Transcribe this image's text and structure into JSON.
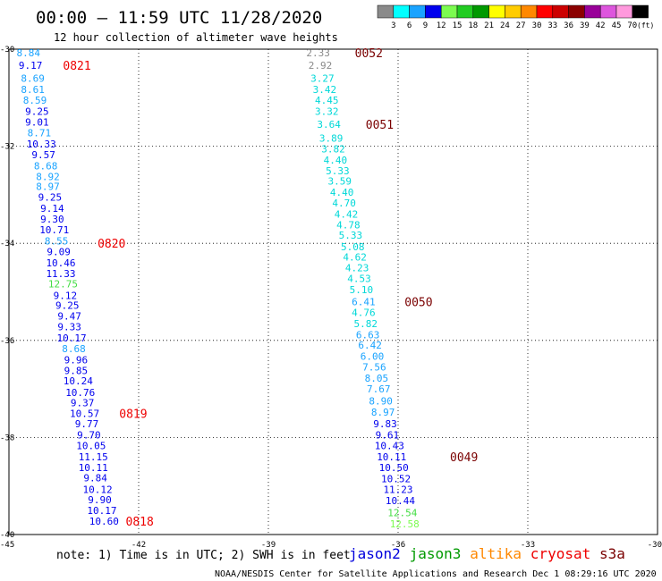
{
  "title": "00:00 – 11:59 UTC 11/28/2020",
  "subtitle": "12 hour collection of altimeter wave heights",
  "units_label": "(ft)",
  "color_scale": [
    {
      "label": "3",
      "color": "#8a8a8a"
    },
    {
      "label": "6",
      "color": "#00ffff"
    },
    {
      "label": "9",
      "color": "#1aa3ff"
    },
    {
      "label": "12",
      "color": "#0000ee"
    },
    {
      "label": "15",
      "color": "#7cfc50"
    },
    {
      "label": "18",
      "color": "#22cc22"
    },
    {
      "label": "21",
      "color": "#009900"
    },
    {
      "label": "24",
      "color": "#ffff00"
    },
    {
      "label": "27",
      "color": "#ffcc00"
    },
    {
      "label": "30",
      "color": "#ff8800"
    },
    {
      "label": "33",
      "color": "#ff0000"
    },
    {
      "label": "36",
      "color": "#cc0000"
    },
    {
      "label": "39",
      "color": "#8b0000"
    },
    {
      "label": "42",
      "color": "#990099"
    },
    {
      "label": "45",
      "color": "#dd55dd"
    },
    {
      "label": "70",
      "color": "#ff99dd"
    },
    {
      "label": "",
      "color": "#000000"
    }
  ],
  "chart_data": {
    "type": "scatter",
    "xlim": [
      -45,
      -30
    ],
    "ylim": [
      -40,
      -30
    ],
    "xticks": [
      {
        "value": -45,
        "label": "-45"
      },
      {
        "value": -42,
        "label": "-42"
      },
      {
        "value": -39,
        "label": "-39"
      },
      {
        "value": -36,
        "label": "-36"
      },
      {
        "value": -33,
        "label": "-33"
      },
      {
        "value": -30,
        "label": "-30"
      }
    ],
    "yticks": [
      {
        "value": -30,
        "label": "-30"
      },
      {
        "value": -32,
        "label": "-32"
      },
      {
        "value": -34,
        "label": "-34"
      },
      {
        "value": -36,
        "label": "-36"
      },
      {
        "value": -38,
        "label": "-38"
      },
      {
        "value": -40,
        "label": "-40"
      }
    ],
    "grid": true,
    "tracks": [
      {
        "points": [
          {
            "lon": -44.55,
            "lat": -30.07,
            "swh": "8.84",
            "color": "#1aa3ff"
          },
          {
            "lon": -44.5,
            "lat": -30.33,
            "swh": "9.17",
            "color": "#0000ee"
          },
          {
            "lon": -44.45,
            "lat": -30.6,
            "swh": "8.69",
            "color": "#1aa3ff"
          },
          {
            "lon": -44.45,
            "lat": -30.83,
            "swh": "8.61",
            "color": "#1aa3ff"
          },
          {
            "lon": -44.4,
            "lat": -31.05,
            "swh": "8.59",
            "color": "#1aa3ff"
          },
          {
            "lon": -44.35,
            "lat": -31.28,
            "swh": "9.25",
            "color": "#0000ee"
          },
          {
            "lon": -44.35,
            "lat": -31.5,
            "swh": "9.01",
            "color": "#0000ee"
          },
          {
            "lon": -44.3,
            "lat": -31.72,
            "swh": "8.71",
            "color": "#1aa3ff"
          },
          {
            "lon": -44.25,
            "lat": -31.95,
            "swh": "10.33",
            "color": "#0000ee"
          },
          {
            "lon": -44.2,
            "lat": -32.17,
            "swh": "9.57",
            "color": "#0000ee"
          },
          {
            "lon": -44.15,
            "lat": -32.4,
            "swh": "8.68",
            "color": "#1aa3ff"
          },
          {
            "lon": -44.1,
            "lat": -32.62,
            "swh": "8.92",
            "color": "#1aa3ff"
          },
          {
            "lon": -44.1,
            "lat": -32.83,
            "swh": "8.97",
            "color": "#1aa3ff"
          },
          {
            "lon": -44.05,
            "lat": -33.05,
            "swh": "9.25",
            "color": "#0000ee"
          },
          {
            "lon": -44.0,
            "lat": -33.28,
            "swh": "9.14",
            "color": "#0000ee"
          },
          {
            "lon": -44.0,
            "lat": -33.5,
            "swh": "9.30",
            "color": "#0000ee"
          },
          {
            "lon": -43.95,
            "lat": -33.72,
            "swh": "10.71",
            "color": "#0000ee"
          },
          {
            "lon": -43.9,
            "lat": -33.95,
            "swh": "8.55",
            "color": "#1aa3ff"
          },
          {
            "lon": -43.85,
            "lat": -34.17,
            "swh": "9.09",
            "color": "#0000ee"
          },
          {
            "lon": -43.8,
            "lat": -34.4,
            "swh": "10.46",
            "color": "#0000ee"
          },
          {
            "lon": -43.8,
            "lat": -34.62,
            "swh": "11.33",
            "color": "#0000ee"
          },
          {
            "lon": -43.75,
            "lat": -34.83,
            "swh": "12.75",
            "color": "#44dd44"
          },
          {
            "lon": -43.7,
            "lat": -35.07,
            "swh": "9.12",
            "color": "#0000ee"
          },
          {
            "lon": -43.65,
            "lat": -35.28,
            "swh": "9.25",
            "color": "#0000ee"
          },
          {
            "lon": -43.6,
            "lat": -35.5,
            "swh": "9.47",
            "color": "#0000ee"
          },
          {
            "lon": -43.6,
            "lat": -35.72,
            "swh": "9.33",
            "color": "#0000ee"
          },
          {
            "lon": -43.55,
            "lat": -35.95,
            "swh": "10.17",
            "color": "#0000ee"
          },
          {
            "lon": -43.5,
            "lat": -36.17,
            "swh": "8.68",
            "color": "#1aa3ff"
          },
          {
            "lon": -43.45,
            "lat": -36.4,
            "swh": "9.96",
            "color": "#0000ee"
          },
          {
            "lon": -43.45,
            "lat": -36.62,
            "swh": "9.85",
            "color": "#0000ee"
          },
          {
            "lon": -43.4,
            "lat": -36.83,
            "swh": "10.24",
            "color": "#0000ee"
          },
          {
            "lon": -43.35,
            "lat": -37.07,
            "swh": "10.76",
            "color": "#0000ee"
          },
          {
            "lon": -43.3,
            "lat": -37.28,
            "swh": "9.37",
            "color": "#0000ee"
          },
          {
            "lon": -43.25,
            "lat": -37.5,
            "swh": "10.57",
            "color": "#0000ee"
          },
          {
            "lon": -43.2,
            "lat": -37.72,
            "swh": "9.77",
            "color": "#0000ee"
          },
          {
            "lon": -43.15,
            "lat": -37.95,
            "swh": "9.70",
            "color": "#0000ee"
          },
          {
            "lon": -43.1,
            "lat": -38.17,
            "swh": "10.05",
            "color": "#0000ee"
          },
          {
            "lon": -43.05,
            "lat": -38.4,
            "swh": "11.15",
            "color": "#0000ee"
          },
          {
            "lon": -43.05,
            "lat": -38.62,
            "swh": "10.11",
            "color": "#0000ee"
          },
          {
            "lon": -43.0,
            "lat": -38.83,
            "swh": "9.84",
            "color": "#0000ee"
          },
          {
            "lon": -42.95,
            "lat": -39.07,
            "swh": "10.12",
            "color": "#0000ee"
          },
          {
            "lon": -42.9,
            "lat": -39.28,
            "swh": "9.90",
            "color": "#0000ee"
          },
          {
            "lon": -42.85,
            "lat": -39.5,
            "swh": "10.17",
            "color": "#0000ee"
          },
          {
            "lon": -42.8,
            "lat": -39.72,
            "swh": "10.60",
            "color": "#0000ee"
          }
        ],
        "time_labels": [
          {
            "text": "0821",
            "lon": -43.75,
            "lat": -30.33,
            "color": "#ee0000"
          },
          {
            "text": "0820",
            "lon": -42.95,
            "lat": -34.0,
            "color": "#ee0000"
          },
          {
            "text": "0819",
            "lon": -42.45,
            "lat": -37.5,
            "color": "#ee0000"
          },
          {
            "text": "0818",
            "lon": -42.3,
            "lat": -39.72,
            "color": "#ee0000"
          }
        ]
      },
      {
        "points": [
          {
            "lon": -37.85,
            "lat": -30.07,
            "swh": "2.33",
            "color": "#8a8a8a"
          },
          {
            "lon": -37.8,
            "lat": -30.33,
            "swh": "2.92",
            "color": "#8a8a8a"
          },
          {
            "lon": -37.75,
            "lat": -30.6,
            "swh": "3.27",
            "color": "#00d8d8"
          },
          {
            "lon": -37.7,
            "lat": -30.83,
            "swh": "3.42",
            "color": "#00d8d8"
          },
          {
            "lon": -37.65,
            "lat": -31.05,
            "swh": "4.45",
            "color": "#00d8d8"
          },
          {
            "lon": -37.65,
            "lat": -31.28,
            "swh": "3.32",
            "color": "#00d8d8"
          },
          {
            "lon": -37.6,
            "lat": -31.55,
            "swh": "3.64",
            "color": "#00d8d8"
          },
          {
            "lon": -37.55,
            "lat": -31.83,
            "swh": "3.89",
            "color": "#00d8d8"
          },
          {
            "lon": -37.5,
            "lat": -32.05,
            "swh": "3.82",
            "color": "#00d8d8"
          },
          {
            "lon": -37.45,
            "lat": -32.28,
            "swh": "4.40",
            "color": "#00d8d8"
          },
          {
            "lon": -37.4,
            "lat": -32.5,
            "swh": "5.33",
            "color": "#00d8d8"
          },
          {
            "lon": -37.35,
            "lat": -32.72,
            "swh": "3.59",
            "color": "#00d8d8"
          },
          {
            "lon": -37.3,
            "lat": -32.95,
            "swh": "4.40",
            "color": "#00d8d8"
          },
          {
            "lon": -37.25,
            "lat": -33.17,
            "swh": "4.70",
            "color": "#00d8d8"
          },
          {
            "lon": -37.2,
            "lat": -33.4,
            "swh": "4.42",
            "color": "#00d8d8"
          },
          {
            "lon": -37.15,
            "lat": -33.62,
            "swh": "4.78",
            "color": "#00d8d8"
          },
          {
            "lon": -37.1,
            "lat": -33.83,
            "swh": "5.33",
            "color": "#00d8d8"
          },
          {
            "lon": -37.05,
            "lat": -34.07,
            "swh": "5.08",
            "color": "#00d8d8"
          },
          {
            "lon": -37.0,
            "lat": -34.28,
            "swh": "4.62",
            "color": "#00d8d8"
          },
          {
            "lon": -36.95,
            "lat": -34.5,
            "swh": "4.23",
            "color": "#00d8d8"
          },
          {
            "lon": -36.9,
            "lat": -34.72,
            "swh": "4.53",
            "color": "#00d8d8"
          },
          {
            "lon": -36.85,
            "lat": -34.95,
            "swh": "5.10",
            "color": "#00d8d8"
          },
          {
            "lon": -36.8,
            "lat": -35.2,
            "swh": "6.41",
            "color": "#1aa3ff"
          },
          {
            "lon": -36.8,
            "lat": -35.42,
            "swh": "4.76",
            "color": "#00d8d8"
          },
          {
            "lon": -36.75,
            "lat": -35.65,
            "swh": "5.82",
            "color": "#00d8d8"
          },
          {
            "lon": -36.7,
            "lat": -35.88,
            "swh": "6.63",
            "color": "#1aa3ff"
          },
          {
            "lon": -36.65,
            "lat": -36.1,
            "swh": "6.42",
            "color": "#1aa3ff"
          },
          {
            "lon": -36.6,
            "lat": -36.33,
            "swh": "6.00",
            "color": "#1aa3ff"
          },
          {
            "lon": -36.55,
            "lat": -36.55,
            "swh": "7.56",
            "color": "#1aa3ff"
          },
          {
            "lon": -36.5,
            "lat": -36.78,
            "swh": "8.05",
            "color": "#1aa3ff"
          },
          {
            "lon": -36.45,
            "lat": -37.0,
            "swh": "7.67",
            "color": "#1aa3ff"
          },
          {
            "lon": -36.4,
            "lat": -37.25,
            "swh": "8.90",
            "color": "#1aa3ff"
          },
          {
            "lon": -36.35,
            "lat": -37.48,
            "swh": "8.97",
            "color": "#1aa3ff"
          },
          {
            "lon": -36.3,
            "lat": -37.72,
            "swh": "9.83",
            "color": "#0000ee"
          },
          {
            "lon": -36.25,
            "lat": -37.95,
            "swh": "9.61",
            "color": "#0000ee"
          },
          {
            "lon": -36.2,
            "lat": -38.17,
            "swh": "10.43",
            "color": "#0000ee"
          },
          {
            "lon": -36.15,
            "lat": -38.4,
            "swh": "10.11",
            "color": "#0000ee"
          },
          {
            "lon": -36.1,
            "lat": -38.62,
            "swh": "10.50",
            "color": "#0000ee"
          },
          {
            "lon": -36.05,
            "lat": -38.85,
            "swh": "10.52",
            "color": "#0000ee"
          },
          {
            "lon": -36.0,
            "lat": -39.07,
            "swh": "11.23",
            "color": "#0000ee"
          },
          {
            "lon": -35.95,
            "lat": -39.3,
            "swh": "10.44",
            "color": "#0000ee"
          },
          {
            "lon": -35.9,
            "lat": -39.55,
            "swh": "12.54",
            "color": "#44dd44"
          },
          {
            "lon": -35.85,
            "lat": -39.78,
            "swh": "12.58",
            "color": "#7cfc50"
          }
        ],
        "time_labels": [
          {
            "text": "0052",
            "lon": -37.0,
            "lat": -30.07,
            "color": "#7a0000"
          },
          {
            "text": "0051",
            "lon": -36.75,
            "lat": -31.55,
            "color": "#7a0000"
          },
          {
            "text": "0050",
            "lon": -35.85,
            "lat": -35.2,
            "color": "#7a0000"
          },
          {
            "text": "0049",
            "lon": -34.8,
            "lat": -38.4,
            "color": "#7a0000"
          }
        ]
      }
    ]
  },
  "note": "note: 1) Time is in UTC; 2) SWH is in feet",
  "satellites": [
    {
      "name": "jason2",
      "color": "#0000dd"
    },
    {
      "name": "jason3",
      "color": "#009900"
    },
    {
      "name": "altika",
      "color": "#ff8800"
    },
    {
      "name": "cryosat",
      "color": "#ee0000"
    },
    {
      "name": "s3a",
      "color": "#7a0000"
    }
  ],
  "footer": "NOAA/NESDIS Center for Satellite Applications and Research   Dec  1 08:29:16 UTC 2020"
}
